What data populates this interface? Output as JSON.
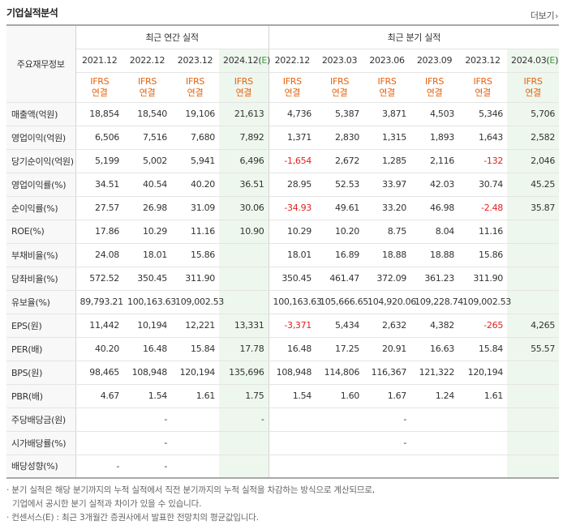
{
  "header": {
    "title": "기업실적분석",
    "more_label": "더보기"
  },
  "table": {
    "corner_label": "주요재무정보",
    "group_annual": "최근 연간 실적",
    "group_quarter": "최근 분기 실적",
    "periods": [
      "2021.12",
      "2022.12",
      "2023.12",
      "2024.12(E)",
      "2022.12",
      "2023.03",
      "2023.06",
      "2023.09",
      "2023.12",
      "2024.03(E)"
    ],
    "accounting_top": "IFRS",
    "accounting_bottom": "연결",
    "rows": [
      {
        "label": "매출액(억원)",
        "values": [
          "18,854",
          "18,540",
          "19,106",
          "21,613",
          "4,736",
          "5,387",
          "3,871",
          "4,503",
          "5,346",
          "5,706"
        ]
      },
      {
        "label": "영업이익(억원)",
        "values": [
          "6,506",
          "7,516",
          "7,680",
          "7,892",
          "1,371",
          "2,830",
          "1,315",
          "1,893",
          "1,643",
          "2,582"
        ]
      },
      {
        "label": "당기순이익(억원)",
        "values": [
          "5,199",
          "5,002",
          "5,941",
          "6,496",
          "-1,654",
          "2,672",
          "1,285",
          "2,116",
          "-132",
          "2,046"
        ]
      },
      {
        "label": "영업이익률(%)",
        "values": [
          "34.51",
          "40.54",
          "40.20",
          "36.51",
          "28.95",
          "52.53",
          "33.97",
          "42.03",
          "30.74",
          "45.25"
        ]
      },
      {
        "label": "순이익률(%)",
        "values": [
          "27.57",
          "26.98",
          "31.09",
          "30.06",
          "-34.93",
          "49.61",
          "33.20",
          "46.98",
          "-2.48",
          "35.87"
        ]
      },
      {
        "label": "ROE(%)",
        "values": [
          "17.86",
          "10.29",
          "11.16",
          "10.90",
          "10.29",
          "10.20",
          "8.75",
          "8.04",
          "11.16",
          ""
        ]
      },
      {
        "label": "부채비율(%)",
        "values": [
          "24.08",
          "18.01",
          "15.86",
          "",
          "18.01",
          "16.89",
          "18.88",
          "18.88",
          "15.86",
          ""
        ]
      },
      {
        "label": "당좌비율(%)",
        "values": [
          "572.52",
          "350.45",
          "311.90",
          "",
          "350.45",
          "461.47",
          "372.09",
          "361.23",
          "311.90",
          ""
        ]
      },
      {
        "label": "유보율(%)",
        "values": [
          "89,793.21",
          "100,163.63",
          "109,002.53",
          "",
          "100,163.63",
          "105,666.65",
          "104,920.06",
          "109,228.74",
          "109,002.53",
          ""
        ]
      },
      {
        "label": "EPS(원)",
        "values": [
          "11,442",
          "10,194",
          "12,221",
          "13,331",
          "-3,371",
          "5,434",
          "2,632",
          "4,382",
          "-265",
          "4,265"
        ]
      },
      {
        "label": "PER(배)",
        "values": [
          "40.20",
          "16.48",
          "15.84",
          "17.78",
          "16.48",
          "17.25",
          "20.91",
          "16.63",
          "15.84",
          "55.57"
        ]
      },
      {
        "label": "BPS(원)",
        "values": [
          "98,465",
          "108,948",
          "120,194",
          "135,696",
          "108,948",
          "114,806",
          "116,367",
          "121,322",
          "120,194",
          ""
        ]
      },
      {
        "label": "PBR(배)",
        "values": [
          "4.67",
          "1.54",
          "1.61",
          "1.75",
          "1.54",
          "1.60",
          "1.67",
          "1.24",
          "1.61",
          ""
        ]
      },
      {
        "label": "주당배당금(원)",
        "values": [
          "",
          "-",
          "",
          "-",
          "",
          "",
          "-",
          "",
          "",
          ""
        ]
      },
      {
        "label": "시가배당률(%)",
        "values": [
          "",
          "-",
          "",
          "",
          "",
          "",
          "-",
          "",
          "",
          ""
        ]
      },
      {
        "label": "배당성향(%)",
        "values": [
          "-",
          "-",
          "",
          "",
          "",
          "",
          "",
          "",
          "",
          ""
        ]
      }
    ]
  },
  "notes": {
    "line1": "분기 실적은 해당 분기까지의 누적 실적에서 직전 분기까지의 누적 실적을 차감하는 방식으로 계산되므로,",
    "line2": "기업에서 공시한 분기 실적과 차이가 있을 수 있습니다.",
    "line3": "컨센서스(E) : 최근 3개월간 증권사에서 발표한 전망치의 평균값입니다."
  }
}
